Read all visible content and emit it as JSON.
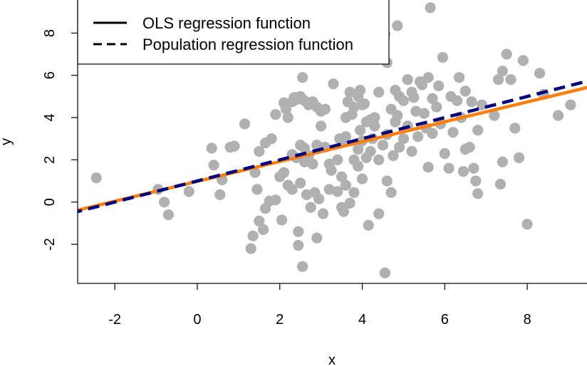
{
  "chart_data": {
    "type": "scatter",
    "title": "",
    "xlabel": "x",
    "ylabel": "y",
    "xlim": [
      -2.9,
      9.5
    ],
    "ylim": [
      -3.85,
      9.6
    ],
    "x_ticks": [
      "-2",
      "0",
      "2",
      "4",
      "6",
      "8"
    ],
    "y_ticks": [
      "-2",
      "0",
      "2",
      "4",
      "6",
      "8"
    ],
    "point_color": "#b0b0b0",
    "points": [
      [
        -2.45,
        1.15
      ],
      [
        -0.95,
        0.6
      ],
      [
        -0.8,
        0.0
      ],
      [
        -0.7,
        -0.6
      ],
      [
        0.35,
        2.55
      ],
      [
        0.4,
        1.75
      ],
      [
        -0.2,
        0.5
      ],
      [
        0.55,
        0.35
      ],
      [
        0.8,
        2.6
      ],
      [
        0.9,
        2.65
      ],
      [
        1.15,
        3.7
      ],
      [
        1.4,
        1.4
      ],
      [
        1.5,
        2.4
      ],
      [
        1.65,
        2.8
      ],
      [
        1.8,
        3.0
      ],
      [
        1.9,
        4.15
      ],
      [
        2.1,
        4.7
      ],
      [
        2.2,
        4.0
      ],
      [
        2.3,
        4.75
      ],
      [
        2.4,
        4.85
      ],
      [
        2.5,
        5.0
      ],
      [
        2.55,
        5.9
      ],
      [
        2.6,
        4.8
      ],
      [
        2.7,
        4.6
      ],
      [
        2.8,
        4.75
      ],
      [
        2.9,
        4.5
      ],
      [
        3.0,
        4.3
      ],
      [
        3.1,
        4.4
      ],
      [
        3.3,
        5.6
      ],
      [
        2.4,
        2.1
      ],
      [
        2.5,
        2.7
      ],
      [
        2.6,
        1.9
      ],
      [
        2.7,
        2.2
      ],
      [
        2.8,
        1.8
      ],
      [
        2.9,
        2.7
      ],
      [
        3.0,
        3.6
      ],
      [
        3.1,
        2.6
      ],
      [
        3.2,
        1.8
      ],
      [
        3.4,
        2.0
      ],
      [
        3.5,
        2.9
      ],
      [
        3.6,
        3.1
      ],
      [
        3.7,
        5.2
      ],
      [
        3.8,
        4.5
      ],
      [
        3.9,
        5.0
      ],
      [
        4.0,
        4.6
      ],
      [
        4.1,
        3.8
      ],
      [
        4.2,
        3.9
      ],
      [
        4.3,
        4.0
      ],
      [
        4.4,
        5.2
      ],
      [
        4.5,
        2.7
      ],
      [
        4.6,
        3.2
      ],
      [
        4.7,
        4.4
      ],
      [
        4.8,
        5.3
      ],
      [
        4.9,
        5.0
      ],
      [
        5.0,
        4.8
      ],
      [
        5.1,
        5.8
      ],
      [
        5.2,
        5.2
      ],
      [
        5.3,
        4.3
      ],
      [
        5.4,
        5.7
      ],
      [
        5.5,
        4.2
      ],
      [
        5.6,
        5.9
      ],
      [
        5.7,
        4.9
      ],
      [
        5.8,
        4.5
      ],
      [
        5.9,
        3.7
      ],
      [
        6.0,
        2.3
      ],
      [
        6.1,
        1.6
      ],
      [
        6.2,
        3.3
      ],
      [
        6.3,
        4.8
      ],
      [
        6.4,
        4.0
      ],
      [
        6.5,
        2.5
      ],
      [
        6.6,
        2.6
      ],
      [
        6.7,
        1.6
      ],
      [
        6.75,
        1.0
      ],
      [
        6.8,
        3.4
      ],
      [
        6.9,
        4.6
      ],
      [
        7.2,
        4.1
      ],
      [
        7.3,
        5.8
      ],
      [
        7.4,
        6.2
      ],
      [
        7.5,
        7.0
      ],
      [
        7.6,
        5.8
      ],
      [
        7.7,
        3.5
      ],
      [
        7.8,
        2.1
      ],
      [
        7.9,
        6.7
      ],
      [
        8.0,
        -1.05
      ],
      [
        8.3,
        6.1
      ],
      [
        8.4,
        5.1
      ],
      [
        8.75,
        4.1
      ],
      [
        9.05,
        4.6
      ],
      [
        5.65,
        9.2
      ],
      [
        4.55,
        7.95
      ],
      [
        4.85,
        8.35
      ],
      [
        4.6,
        6.6
      ],
      [
        5.95,
        6.85
      ],
      [
        1.3,
        -2.2
      ],
      [
        1.35,
        -1.6
      ],
      [
        1.6,
        -1.3
      ],
      [
        1.5,
        -0.9
      ],
      [
        1.65,
        -0.3
      ],
      [
        1.9,
        0.1
      ],
      [
        2.05,
        -0.85
      ],
      [
        2.45,
        -1.4
      ],
      [
        2.45,
        -2.05
      ],
      [
        2.55,
        -3.05
      ],
      [
        2.75,
        -0.25
      ],
      [
        2.9,
        -1.7
      ],
      [
        3.05,
        -0.55
      ],
      [
        3.5,
        -0.25
      ],
      [
        3.55,
        -0.45
      ],
      [
        3.7,
        -0.05
      ],
      [
        4.15,
        -1.1
      ],
      [
        4.4,
        -0.55
      ],
      [
        4.55,
        -3.35
      ],
      [
        4.6,
        1.0
      ],
      [
        4.7,
        0.45
      ],
      [
        2.0,
        1.2
      ],
      [
        2.1,
        1.4
      ],
      [
        2.2,
        0.8
      ],
      [
        2.3,
        0.6
      ],
      [
        2.5,
        0.9
      ],
      [
        2.65,
        0.35
      ],
      [
        2.85,
        0.45
      ],
      [
        3.2,
        0.6
      ],
      [
        3.4,
        0.5
      ],
      [
        3.5,
        1.2
      ],
      [
        3.6,
        0.8
      ],
      [
        3.8,
        0.45
      ],
      [
        3.9,
        1.7
      ],
      [
        4.0,
        1.1
      ],
      [
        4.1,
        2.1
      ],
      [
        4.2,
        2.4
      ],
      [
        4.4,
        2.0
      ],
      [
        4.9,
        2.6
      ],
      [
        5.0,
        3.0
      ],
      [
        5.2,
        2.4
      ],
      [
        3.8,
        2.0
      ],
      [
        3.9,
        2.5
      ],
      [
        4.0,
        2.9
      ],
      [
        4.3,
        3.6
      ],
      [
        4.75,
        2.2
      ],
      [
        5.6,
        1.65
      ],
      [
        6.45,
        1.45
      ],
      [
        7.35,
        0.85
      ],
      [
        7.4,
        1.9
      ],
      [
        6.8,
        0.4
      ],
      [
        1.75,
        0.05
      ],
      [
        1.45,
        0.6
      ],
      [
        2.95,
        0.15
      ],
      [
        3.25,
        1.5
      ],
      [
        0.6,
        1.05
      ],
      [
        2.3,
        2.25
      ],
      [
        2.6,
        2.55
      ],
      [
        3.45,
        3.0
      ],
      [
        3.95,
        3.4
      ],
      [
        4.25,
        3.0
      ],
      [
        4.8,
        3.8
      ],
      [
        5.1,
        3.6
      ],
      [
        5.35,
        3.1
      ],
      [
        5.55,
        3.5
      ],
      [
        5.7,
        3.25
      ],
      [
        6.15,
        5.0
      ],
      [
        6.35,
        5.9
      ],
      [
        6.5,
        5.25
      ],
      [
        6.65,
        4.75
      ],
      [
        5.45,
        5.55
      ],
      [
        5.85,
        5.5
      ],
      [
        4.05,
        4.65
      ],
      [
        3.75,
        4.15
      ],
      [
        3.6,
        4.0
      ],
      [
        3.65,
        4.75
      ],
      [
        3.95,
        5.3
      ],
      [
        4.85,
        4.1
      ],
      [
        5.25,
        4.95
      ],
      [
        2.15,
        4.4
      ],
      [
        2.35,
        4.95
      ]
    ],
    "series": [
      {
        "name": "OLS regression function",
        "color": "#ff7f0e",
        "dash": "solid",
        "intercept": 0.98,
        "slope": 0.47
      },
      {
        "name": "Population regression function",
        "color": "#000080",
        "dash": "dashed",
        "intercept": 1.0,
        "slope": 0.5
      }
    ],
    "legend": {
      "position": "top-left",
      "entries": [
        {
          "label": "OLS regression function",
          "dash": "solid",
          "color": "#000000"
        },
        {
          "label": "Population regression function",
          "dash": "dashed",
          "color": "#000000"
        }
      ]
    },
    "grid": false
  }
}
